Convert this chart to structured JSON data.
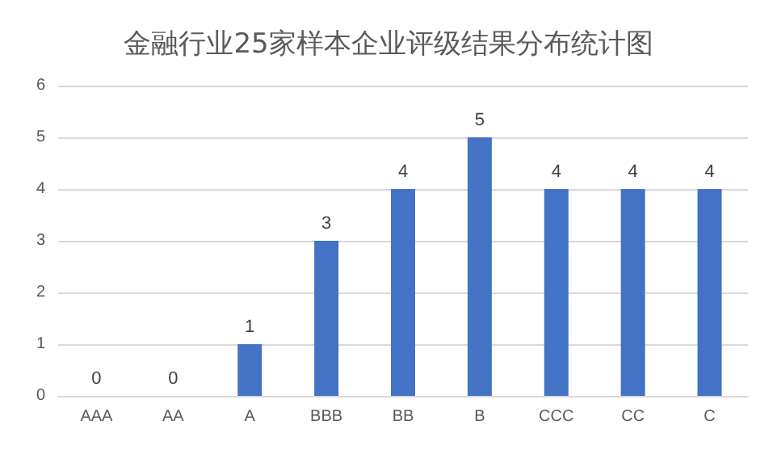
{
  "chart_data": {
    "type": "bar",
    "title": "金融行业25家样本企业评级结果分布统计图",
    "categories": [
      "AAA",
      "AA",
      "A",
      "BBB",
      "BB",
      "B",
      "CCC",
      "CC",
      "C"
    ],
    "values": [
      0,
      0,
      1,
      3,
      4,
      5,
      4,
      4,
      4
    ],
    "color": "#4472c4",
    "ylim": [
      0,
      6
    ],
    "yticks": [
      0,
      1,
      2,
      3,
      4,
      5,
      6
    ],
    "grid": "y",
    "data_labels": true
  }
}
